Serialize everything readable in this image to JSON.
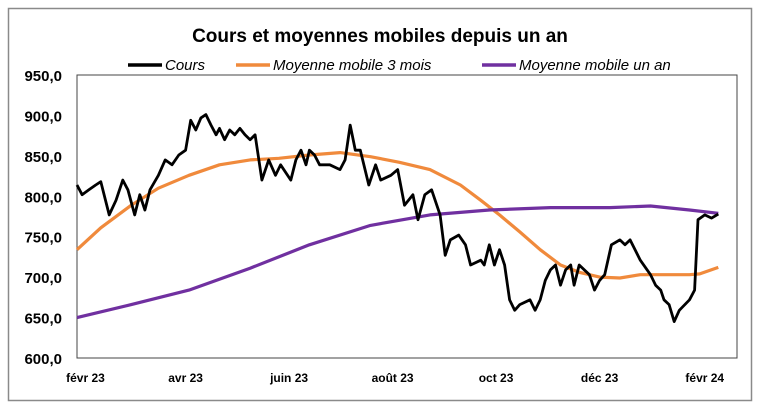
{
  "chart_data": {
    "type": "line",
    "title": "Cours et moyennes mobiles depuis un an",
    "xlabel": "",
    "ylabel": "",
    "ylim": [
      600,
      950
    ],
    "xlim": [
      "2023-01-27",
      "2024-02-20"
    ],
    "yticks": [
      "600,0",
      "650,0",
      "700,0",
      "750,0",
      "800,0",
      "850,0",
      "900,0",
      "950,0"
    ],
    "xticks": [
      {
        "date": "2023-02-01",
        "label": "févr 23"
      },
      {
        "date": "2023-04-01",
        "label": "avr 23"
      },
      {
        "date": "2023-06-01",
        "label": "juin 23"
      },
      {
        "date": "2023-08-01",
        "label": "août 23"
      },
      {
        "date": "2023-10-01",
        "label": "oct 23"
      },
      {
        "date": "2023-12-01",
        "label": "déc 23"
      },
      {
        "date": "2024-02-01",
        "label": "févr 24"
      }
    ],
    "grid": false,
    "legend_position": "top",
    "series": [
      {
        "name": "Cours",
        "color": "#000000",
        "x": [
          "2023-01-27",
          "2023-01-30",
          "2023-02-03",
          "2023-02-07",
          "2023-02-10",
          "2023-02-15",
          "2023-02-19",
          "2023-02-23",
          "2023-02-26",
          "2023-03-02",
          "2023-03-05",
          "2023-03-08",
          "2023-03-11",
          "2023-03-16",
          "2023-03-20",
          "2023-03-24",
          "2023-03-28",
          "2023-04-01",
          "2023-04-04",
          "2023-04-07",
          "2023-04-10",
          "2023-04-13",
          "2023-04-16",
          "2023-04-19",
          "2023-04-21",
          "2023-04-24",
          "2023-04-27",
          "2023-04-30",
          "2023-05-03",
          "2023-05-06",
          "2023-05-09",
          "2023-05-12",
          "2023-05-16",
          "2023-05-20",
          "2023-05-24",
          "2023-05-27",
          "2023-06-02",
          "2023-06-05",
          "2023-06-08",
          "2023-06-11",
          "2023-06-13",
          "2023-06-16",
          "2023-06-19",
          "2023-06-25",
          "2023-07-01",
          "2023-07-04",
          "2023-07-07",
          "2023-07-10",
          "2023-07-13",
          "2023-07-18",
          "2023-07-22",
          "2023-07-25",
          "2023-07-31",
          "2023-08-04",
          "2023-08-08",
          "2023-08-13",
          "2023-08-16",
          "2023-08-20",
          "2023-08-24",
          "2023-08-29",
          "2023-09-01",
          "2023-09-04",
          "2023-09-09",
          "2023-09-13",
          "2023-09-16",
          "2023-09-22",
          "2023-09-24",
          "2023-09-27",
          "2023-09-30",
          "2023-10-03",
          "2023-10-06",
          "2023-10-09",
          "2023-10-12",
          "2023-10-15",
          "2023-10-21",
          "2023-10-24",
          "2023-10-27",
          "2023-10-30",
          "2023-11-02",
          "2023-11-05",
          "2023-11-08",
          "2023-11-11",
          "2023-11-14",
          "2023-11-16",
          "2023-11-19",
          "2023-11-25",
          "2023-11-28",
          "2023-12-01",
          "2023-12-04",
          "2023-12-08",
          "2023-12-13",
          "2023-12-16",
          "2023-12-19",
          "2023-12-25",
          "2023-12-31",
          "2024-01-03",
          "2024-01-06",
          "2024-01-08",
          "2024-01-11",
          "2024-01-14",
          "2024-01-17",
          "2024-01-23",
          "2024-01-26",
          "2024-01-28",
          "2024-02-01",
          "2024-02-05",
          "2024-02-09"
        ],
        "values": [
          814,
          802,
          808,
          814,
          818,
          777,
          795,
          820,
          808,
          777,
          802,
          783,
          808,
          826,
          845,
          839,
          851,
          857,
          894,
          882,
          897,
          901,
          888,
          876,
          884,
          870,
          882,
          876,
          884,
          876,
          870,
          876,
          820,
          845,
          826,
          839,
          820,
          845,
          857,
          839,
          857,
          851,
          839,
          839,
          833,
          845,
          888,
          857,
          857,
          814,
          839,
          820,
          826,
          833,
          789,
          802,
          771,
          802,
          808,
          777,
          727,
          746,
          752,
          740,
          715,
          721,
          715,
          740,
          715,
          734,
          715,
          672,
          659,
          666,
          672,
          659,
          672,
          696,
          709,
          715,
          690,
          709,
          715,
          690,
          715,
          703,
          684,
          696,
          703,
          740,
          746,
          740,
          746,
          721,
          703,
          690,
          684,
          672,
          666,
          645,
          659,
          672,
          684,
          771,
          777,
          773,
          778
        ]
      },
      {
        "name": "Moyenne mobile 3 mois",
        "color": "#f08a3c",
        "x": [
          "2023-01-27",
          "2023-02-10",
          "2023-02-28",
          "2023-03-16",
          "2023-04-03",
          "2023-04-21",
          "2023-05-09",
          "2023-05-26",
          "2023-06-13",
          "2023-07-01",
          "2023-07-19",
          "2023-08-05",
          "2023-08-23",
          "2023-09-10",
          "2023-09-22",
          "2023-10-03",
          "2023-10-15",
          "2023-10-27",
          "2023-11-08",
          "2023-11-19",
          "2023-12-01",
          "2023-12-13",
          "2023-12-25",
          "2024-01-06",
          "2024-01-23",
          "2024-01-29",
          "2024-02-09"
        ],
        "values": [
          734,
          761,
          789,
          810,
          826,
          839,
          845,
          847,
          851,
          854,
          849,
          842,
          833,
          814,
          795,
          777,
          756,
          734,
          715,
          706,
          700,
          699,
          703,
          703,
          703,
          704,
          712
        ]
      },
      {
        "name": "Moyenne mobile un an",
        "color": "#7030a0",
        "x": [
          "2023-01-27",
          "2023-02-28",
          "2023-04-03",
          "2023-05-09",
          "2023-06-13",
          "2023-07-19",
          "2023-08-23",
          "2023-09-27",
          "2023-11-02",
          "2023-12-07",
          "2023-12-31",
          "2024-01-23",
          "2024-02-09"
        ],
        "values": [
          650,
          666,
          684,
          711,
          740,
          764,
          777,
          783,
          786,
          786,
          788,
          783,
          779
        ]
      }
    ]
  }
}
